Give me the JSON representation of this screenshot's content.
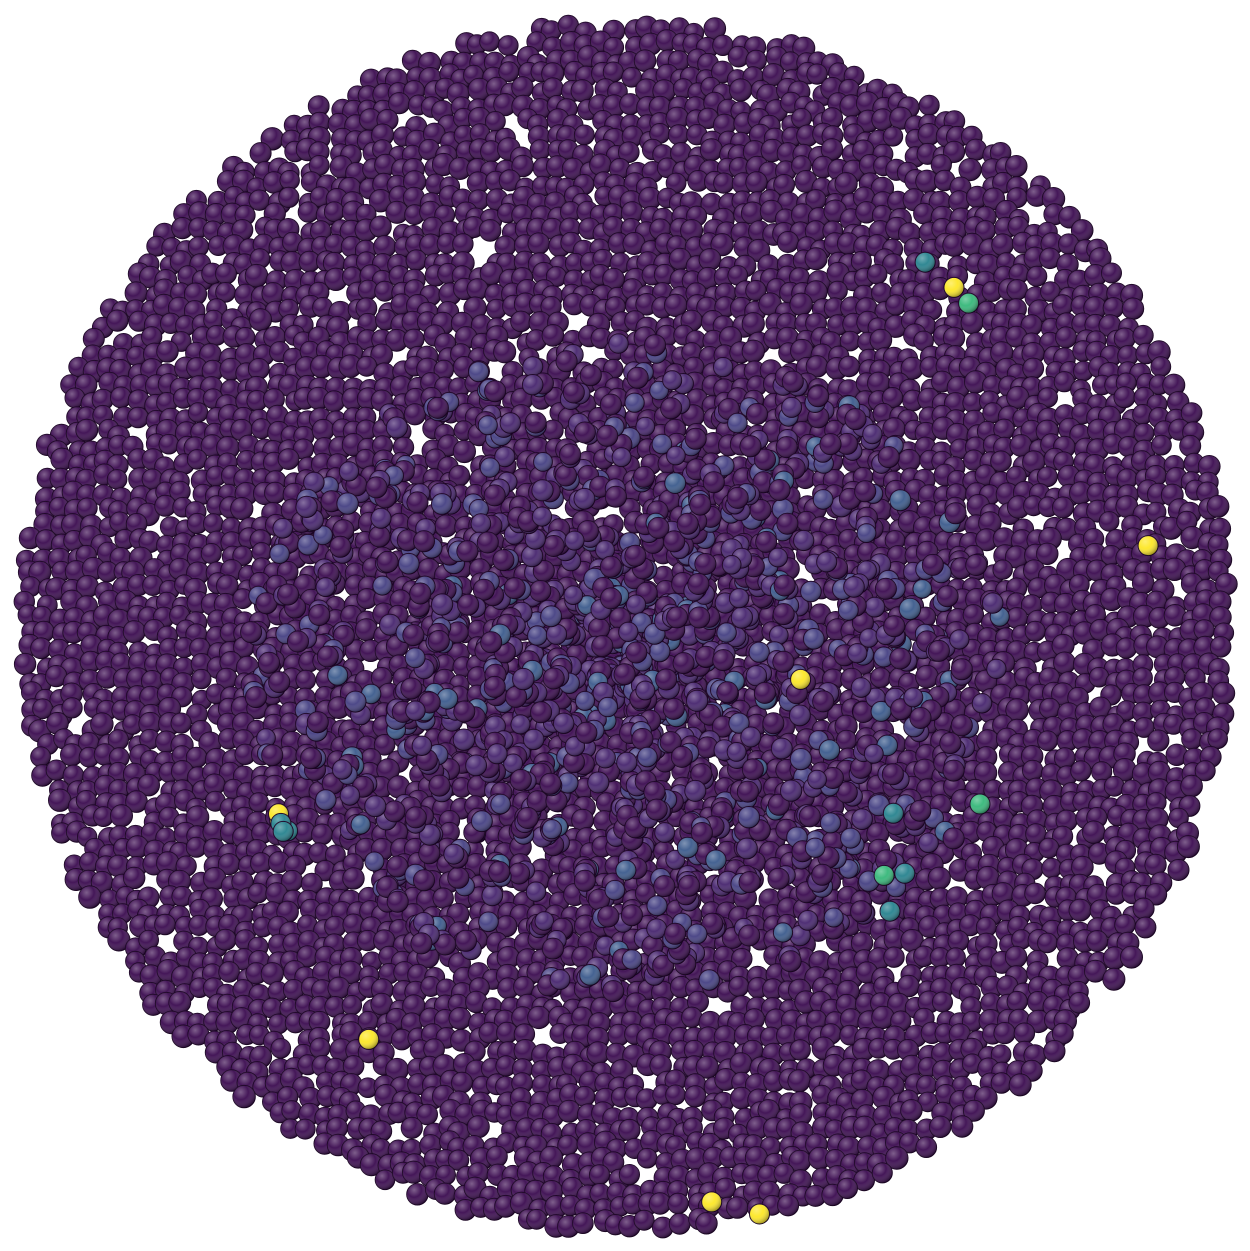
{
  "scene": {
    "background": "#ffffff",
    "palette": {
      "dark_purple": "#3a0a4f",
      "mid_purple": "#46246e",
      "blue_purple": "#443f82",
      "steel_blue": "#3b5a8c",
      "teal": "#26828e",
      "green": "#35b779",
      "yellow": "#fde725",
      "outline": "#1a0224"
    },
    "highlights": [
      {
        "color": "yellow",
        "count": 1,
        "region": "upper-right"
      },
      {
        "color": "green",
        "count": 1,
        "region": "upper-right"
      },
      {
        "color": "teal",
        "count": 1,
        "region": "upper-right"
      },
      {
        "color": "yellow",
        "count": 1,
        "region": "right"
      },
      {
        "color": "yellow",
        "count": 1,
        "region": "center-right"
      },
      {
        "color": "green",
        "count": 1,
        "region": "lower-right"
      },
      {
        "color": "green",
        "count": 1,
        "region": "lower-right"
      },
      {
        "color": "teal",
        "count": 3,
        "region": "lower-right"
      },
      {
        "color": "yellow",
        "count": 2,
        "region": "left"
      },
      {
        "color": "teal",
        "count": 3,
        "region": "left"
      },
      {
        "color": "yellow",
        "count": 1,
        "region": "lower-left"
      },
      {
        "color": "yellow",
        "count": 1,
        "region": "bottom"
      },
      {
        "color": "yellow",
        "count": 1,
        "region": "bottom"
      }
    ]
  }
}
